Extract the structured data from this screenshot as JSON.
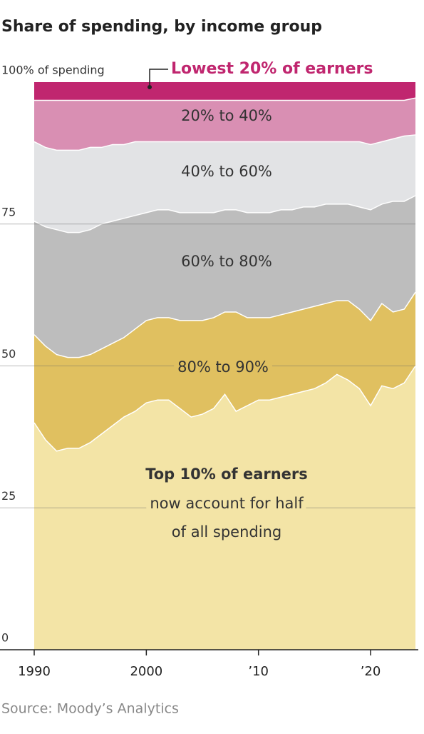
{
  "chart_data": {
    "type": "stacked_area",
    "title": "Share of spending, by income group",
    "source": "Source: Moody’s Analytics",
    "annotation": [
      "now account for half",
      "of all spending"
    ],
    "x": [
      1990,
      1991,
      1992,
      1993,
      1994,
      1995,
      1996,
      1997,
      1998,
      1999,
      2000,
      2001,
      2002,
      2003,
      2004,
      2005,
      2006,
      2007,
      2008,
      2009,
      2010,
      2011,
      2012,
      2013,
      2014,
      2015,
      2016,
      2017,
      2018,
      2019,
      2020,
      2021,
      2022,
      2023,
      2024
    ],
    "xlim": [
      1990,
      2024
    ],
    "xticks": [
      1990,
      2000,
      {
        "value": 2010,
        "label": "’10"
      },
      {
        "value": 2020,
        "label": "’20"
      }
    ],
    "ylim": [
      0,
      100
    ],
    "yticks": [
      0,
      25,
      50,
      75,
      {
        "value": 100,
        "label": "100% of spending"
      }
    ],
    "grid": true,
    "series": [
      {
        "name": "Top 10% of earners",
        "color": "#f3e4a6",
        "values": [
          40,
          37,
          35,
          35.5,
          35.5,
          36.5,
          38,
          39.5,
          41,
          42,
          43.5,
          44,
          44,
          42.5,
          41,
          41.5,
          42.5,
          45,
          42,
          43,
          44,
          44,
          44.5,
          45,
          45.5,
          46,
          47,
          48.5,
          47.5,
          46,
          43,
          46.5,
          46,
          47,
          50
        ]
      },
      {
        "name": "80% to 90%",
        "color": "#e0c060",
        "values": [
          15.5,
          16.5,
          17,
          16,
          16,
          15.5,
          15,
          14.5,
          14,
          14.5,
          14.5,
          14.5,
          14.5,
          15.5,
          17,
          16.5,
          16,
          14.5,
          17.5,
          15.5,
          14.5,
          14.5,
          14.5,
          14.5,
          14.5,
          14.5,
          14,
          13,
          14,
          14,
          15,
          14.5,
          13.5,
          13,
          13
        ]
      },
      {
        "name": "60% to 80%",
        "color": "#bdbdbd",
        "values": [
          20,
          21,
          22,
          22,
          22,
          22,
          22,
          21.5,
          21,
          20,
          19,
          19,
          19,
          19,
          19,
          19,
          18.5,
          18,
          18,
          18.5,
          18.5,
          18.5,
          18.5,
          18,
          18,
          17.5,
          17.5,
          17,
          17,
          18,
          19.5,
          17.5,
          19.5,
          19,
          17
        ]
      },
      {
        "name": "40% to 60%",
        "color": "#e2e3e5",
        "values": [
          14,
          14,
          14,
          14.5,
          14.5,
          14.5,
          13.5,
          13.5,
          13,
          13,
          12.5,
          12,
          12,
          12.5,
          12.5,
          12.5,
          12.5,
          12,
          12,
          12.5,
          12.5,
          12.5,
          12,
          12,
          11.5,
          11.5,
          11,
          11,
          11,
          11.5,
          11.5,
          11,
          11,
          11.5,
          10.7
        ]
      },
      {
        "name": "20% to 40%",
        "color": "#d98fb3",
        "values": [
          7.3,
          8.3,
          8.8,
          8.8,
          8.8,
          8.3,
          8.3,
          7.8,
          7.8,
          7.3,
          7.3,
          7.3,
          7.3,
          7.3,
          7.3,
          7.3,
          7.3,
          7.3,
          7.3,
          7.3,
          7.3,
          7.3,
          7.3,
          7.3,
          7.3,
          7.3,
          7.3,
          7.3,
          7.3,
          7.3,
          7.8,
          7.3,
          6.8,
          6.3,
          6.5
        ]
      },
      {
        "name": "Lowest 20% of earners",
        "color": "#c0266f",
        "values": [
          3.2,
          3.2,
          3.2,
          3.2,
          3.2,
          3.2,
          3.2,
          3.2,
          3.2,
          3.2,
          3.2,
          3.2,
          3.2,
          3.2,
          3.2,
          3.2,
          3.2,
          3.2,
          3.2,
          3.2,
          3.2,
          3.2,
          3.2,
          3.2,
          3.2,
          3.2,
          3.2,
          3.2,
          3.2,
          3.2,
          3.2,
          3.2,
          3.2,
          3.2,
          2.8
        ]
      }
    ]
  }
}
